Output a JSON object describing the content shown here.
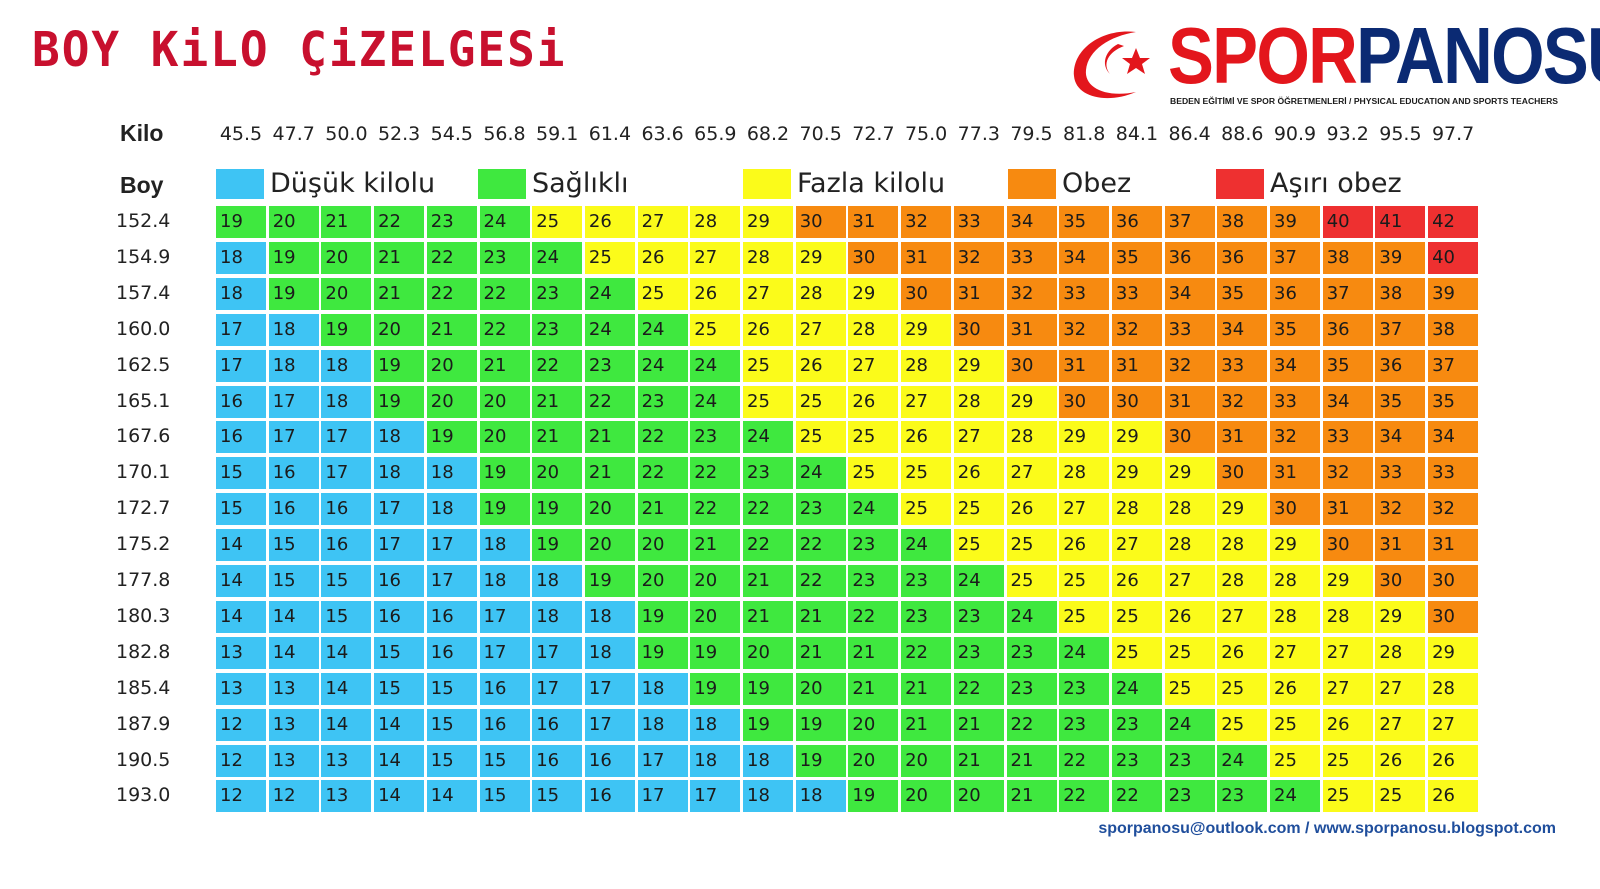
{
  "title": "BOY KiLO ÇiZELGESi",
  "logo": {
    "part1": "SPOR",
    "part2": "PANOSU",
    "subtitle": "BEDEN EĞİTİMİ VE SPOR ÖĞRETMENLERİ  / PHYSICAL EDUCATION AND SPORTS TEACHERS"
  },
  "footer": "sporpanosu@outlook.com  / www.sporpanosu.blogspot.com",
  "colors": {
    "title": "#c8102e",
    "underweight": "#3ec4f4",
    "healthy": "#3fe83f",
    "overweight": "#fbfb1a",
    "obese": "#f78a10",
    "very_obese": "#ee3030"
  },
  "chart_data": {
    "type": "heatmap",
    "title": "BOY KiLO ÇiZELGESi",
    "xlabel": "Kilo",
    "ylabel": "Boy",
    "x": [
      "45.5",
      "47.7",
      "50.0",
      "52.3",
      "54.5",
      "56.8",
      "59.1",
      "61.4",
      "63.6",
      "65.9",
      "68.2",
      "70.5",
      "72.7",
      "75.0",
      "77.3",
      "79.5",
      "81.8",
      "84.1",
      "86.4",
      "88.6",
      "90.9",
      "93.2",
      "95.5",
      "97.7"
    ],
    "y": [
      "152.4",
      "154.9",
      "157.4",
      "160.0",
      "162.5",
      "165.1",
      "167.6",
      "170.1",
      "172.7",
      "175.2",
      "177.8",
      "180.3",
      "182.8",
      "185.4",
      "187.9",
      "190.5",
      "193.0"
    ],
    "legend": [
      {
        "label": "Düşük kilolu",
        "color": "#3ec4f4"
      },
      {
        "label": "Sağlıklı",
        "color": "#3fe83f"
      },
      {
        "label": "Fazla kilolu",
        "color": "#fbfb1a"
      },
      {
        "label": "Obez",
        "color": "#f78a10"
      },
      {
        "label": "Aşırı obez",
        "color": "#ee3030"
      }
    ],
    "values": [
      [
        19,
        20,
        21,
        22,
        23,
        24,
        25,
        26,
        27,
        28,
        29,
        30,
        31,
        32,
        33,
        34,
        35,
        36,
        37,
        38,
        39,
        40,
        41,
        42
      ],
      [
        18,
        19,
        20,
        21,
        22,
        23,
        24,
        25,
        26,
        27,
        28,
        29,
        30,
        31,
        32,
        33,
        34,
        35,
        36,
        36,
        37,
        38,
        39,
        40
      ],
      [
        18,
        19,
        20,
        21,
        22,
        22,
        23,
        24,
        25,
        26,
        27,
        28,
        29,
        30,
        31,
        32,
        33,
        33,
        34,
        35,
        36,
        37,
        38,
        39
      ],
      [
        17,
        18,
        19,
        20,
        21,
        22,
        23,
        24,
        24,
        25,
        26,
        27,
        28,
        29,
        30,
        31,
        32,
        32,
        33,
        34,
        35,
        36,
        37,
        38
      ],
      [
        17,
        18,
        18,
        19,
        20,
        21,
        22,
        23,
        24,
        24,
        25,
        26,
        27,
        28,
        29,
        30,
        31,
        31,
        32,
        33,
        34,
        35,
        36,
        37
      ],
      [
        16,
        17,
        18,
        19,
        20,
        20,
        21,
        22,
        23,
        24,
        25,
        25,
        26,
        27,
        28,
        29,
        30,
        30,
        31,
        32,
        33,
        34,
        35,
        35
      ],
      [
        16,
        17,
        17,
        18,
        19,
        20,
        21,
        21,
        22,
        23,
        24,
        25,
        25,
        26,
        27,
        28,
        29,
        29,
        30,
        31,
        32,
        33,
        34,
        34
      ],
      [
        15,
        16,
        17,
        18,
        18,
        19,
        20,
        21,
        22,
        22,
        23,
        24,
        25,
        25,
        26,
        27,
        28,
        29,
        29,
        30,
        31,
        32,
        33,
        33
      ],
      [
        15,
        16,
        16,
        17,
        18,
        19,
        19,
        20,
        21,
        22,
        22,
        23,
        24,
        25,
        25,
        26,
        27,
        28,
        28,
        29,
        30,
        31,
        32,
        32
      ],
      [
        14,
        15,
        16,
        17,
        17,
        18,
        19,
        20,
        20,
        21,
        22,
        22,
        23,
        24,
        25,
        25,
        26,
        27,
        28,
        28,
        29,
        30,
        31,
        31
      ],
      [
        14,
        15,
        15,
        16,
        17,
        18,
        18,
        19,
        20,
        20,
        21,
        22,
        23,
        23,
        24,
        25,
        25,
        26,
        27,
        28,
        28,
        29,
        30,
        30
      ],
      [
        14,
        14,
        15,
        16,
        16,
        17,
        18,
        18,
        19,
        20,
        21,
        21,
        22,
        23,
        23,
        24,
        25,
        25,
        26,
        27,
        28,
        28,
        29,
        30
      ],
      [
        13,
        14,
        14,
        15,
        16,
        17,
        17,
        18,
        19,
        19,
        20,
        21,
        21,
        22,
        23,
        23,
        24,
        25,
        25,
        26,
        27,
        27,
        28,
        29
      ],
      [
        13,
        13,
        14,
        15,
        15,
        16,
        17,
        17,
        18,
        19,
        19,
        20,
        21,
        21,
        22,
        23,
        23,
        24,
        25,
        25,
        26,
        27,
        27,
        28
      ],
      [
        12,
        13,
        14,
        14,
        15,
        16,
        16,
        17,
        18,
        18,
        19,
        19,
        20,
        21,
        21,
        22,
        23,
        23,
        24,
        25,
        25,
        26,
        27,
        27
      ],
      [
        12,
        13,
        13,
        14,
        15,
        15,
        16,
        16,
        17,
        18,
        18,
        19,
        20,
        20,
        21,
        21,
        22,
        23,
        23,
        24,
        25,
        25,
        26,
        26
      ],
      [
        12,
        12,
        13,
        14,
        14,
        15,
        15,
        16,
        17,
        17,
        18,
        18,
        19,
        20,
        20,
        21,
        22,
        22,
        23,
        23,
        24,
        25,
        25,
        26
      ]
    ]
  }
}
